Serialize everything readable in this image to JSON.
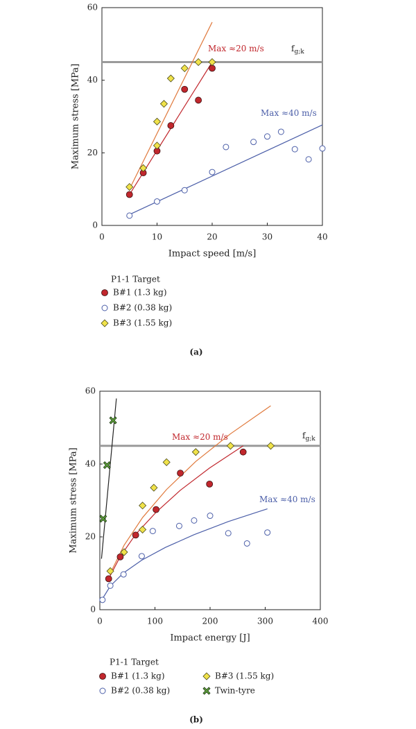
{
  "chart_data": [
    {
      "type": "scatter",
      "caption": "(a)",
      "x_label": "Impact speed [m/s]",
      "y_label": "Maximum stress [MPa]",
      "xlim": [
        0,
        40
      ],
      "xticks": [
        0,
        10,
        20,
        30,
        40
      ],
      "ylim": [
        0,
        60
      ],
      "yticks": [
        0,
        20,
        40,
        60
      ],
      "legend_title": "P1-1 Target",
      "series": [
        {
          "name": "B#1 (1.3 kg)",
          "color": "#c1272d",
          "marker": "circle",
          "x": [
            5,
            7.5,
            10,
            12.5,
            15,
            17.5,
            20
          ],
          "values": [
            8.5,
            14.5,
            20.5,
            27.5,
            37.5,
            34.5,
            43.3
          ]
        },
        {
          "name": "B#2 (0.38 kg)",
          "color": "#4b5ea8",
          "marker": "open-circle",
          "x": [
            5,
            10,
            15,
            20,
            22.5,
            27.5,
            30,
            32.5,
            35,
            37.5,
            40
          ],
          "values": [
            2.7,
            6.6,
            9.7,
            14.7,
            21.6,
            23,
            24.5,
            25.8,
            21,
            18.2,
            21.2
          ]
        },
        {
          "name": "B#3 (1.55 kg)",
          "color": "#f0e24a",
          "marker": "diamond",
          "x": [
            5,
            7.5,
            10,
            10,
            11.25,
            12.5,
            15,
            17.5,
            20
          ],
          "values": [
            10.6,
            15.8,
            22,
            28.6,
            33.5,
            40.5,
            43.3,
            45,
            45
          ]
        }
      ],
      "fits": [
        {
          "color": "#c1272d",
          "x": [
            5,
            20
          ],
          "values": [
            8.5,
            45
          ]
        },
        {
          "color": "#e0793c",
          "x": [
            5,
            20
          ],
          "values": [
            10,
            56
          ]
        },
        {
          "color": "#4b5ea8",
          "x": [
            5,
            40
          ],
          "values": [
            3,
            27.7
          ]
        }
      ],
      "reference_lines": [
        {
          "value": 45,
          "color": "#9a9a9a"
        }
      ],
      "annotations": [
        {
          "text": "Max ≈20 m/s",
          "color": "#c1272d"
        },
        {
          "text": "Max ≈40 m/s",
          "color": "#4b5ea8"
        },
        {
          "text": "f",
          "subscript": "g;k",
          "color": "#222222"
        }
      ]
    },
    {
      "type": "scatter",
      "caption": "(b)",
      "x_label": "Impact energy [J]",
      "y_label": "Maximum stress [MPa]",
      "xlim": [
        0,
        400
      ],
      "xticks": [
        0,
        100,
        200,
        300,
        400
      ],
      "ylim": [
        0,
        60
      ],
      "yticks": [
        0,
        20,
        40,
        60
      ],
      "legend_title": "P1-1 Target",
      "series": [
        {
          "name": "B#1 (1.3 kg)",
          "color": "#c1272d",
          "marker": "circle",
          "x": [
            16,
            37,
            65,
            102,
            146,
            199,
            260
          ],
          "values": [
            8.5,
            14.5,
            20.5,
            27.5,
            37.5,
            34.5,
            43.3
          ]
        },
        {
          "name": "B#3 (1.55 kg)",
          "color": "#f0e24a",
          "marker": "diamond",
          "x": [
            19,
            44,
            77.5,
            77.5,
            98,
            121,
            174,
            237,
            310
          ],
          "values": [
            10.6,
            15.8,
            22,
            28.6,
            33.5,
            40.5,
            43.3,
            45,
            45
          ]
        },
        {
          "name": "B#2 (0.38 kg)",
          "color": "#4b5ea8",
          "marker": "open-circle",
          "x": [
            4.75,
            19,
            43,
            76,
            96,
            144,
            171,
            200,
            233,
            267,
            304
          ],
          "values": [
            2.7,
            6.6,
            9.7,
            14.7,
            21.6,
            23,
            24.5,
            25.8,
            21,
            18.2,
            21.2
          ]
        },
        {
          "name": "Twin-tyre",
          "color": "#5e9e3c",
          "marker": "x",
          "x": [
            6,
            13,
            24
          ],
          "values": [
            25,
            39.7,
            52
          ]
        }
      ],
      "fits": [
        {
          "color": "#c1272d",
          "x": [
            16,
            37,
            65,
            102,
            146,
            199,
            260
          ],
          "values": [
            8.5,
            14.6,
            20.7,
            26.75,
            32.8,
            38.9,
            45
          ]
        },
        {
          "color": "#e0793c",
          "x": [
            19,
            44,
            77.5,
            121,
            174,
            237,
            310
          ],
          "values": [
            10,
            17.7,
            25.3,
            33,
            40.7,
            48.3,
            56
          ]
        },
        {
          "color": "#4b5ea8",
          "x": [
            4.75,
            19,
            43,
            76,
            119,
            171,
            233,
            304
          ],
          "values": [
            3,
            6.5,
            10.1,
            13.6,
            17.1,
            20.6,
            24.2,
            27.7
          ]
        },
        {
          "color": "#222222",
          "x": [
            3,
            30
          ],
          "values": [
            14,
            58
          ]
        }
      ],
      "reference_lines": [
        {
          "value": 45,
          "color": "#9a9a9a"
        }
      ],
      "annotations": [
        {
          "text": "Max ≈20 m/s",
          "color": "#c1272d"
        },
        {
          "text": "Max ≈40 m/s",
          "color": "#4b5ea8"
        },
        {
          "text": "f",
          "subscript": "g;k",
          "color": "#222222"
        }
      ]
    }
  ]
}
